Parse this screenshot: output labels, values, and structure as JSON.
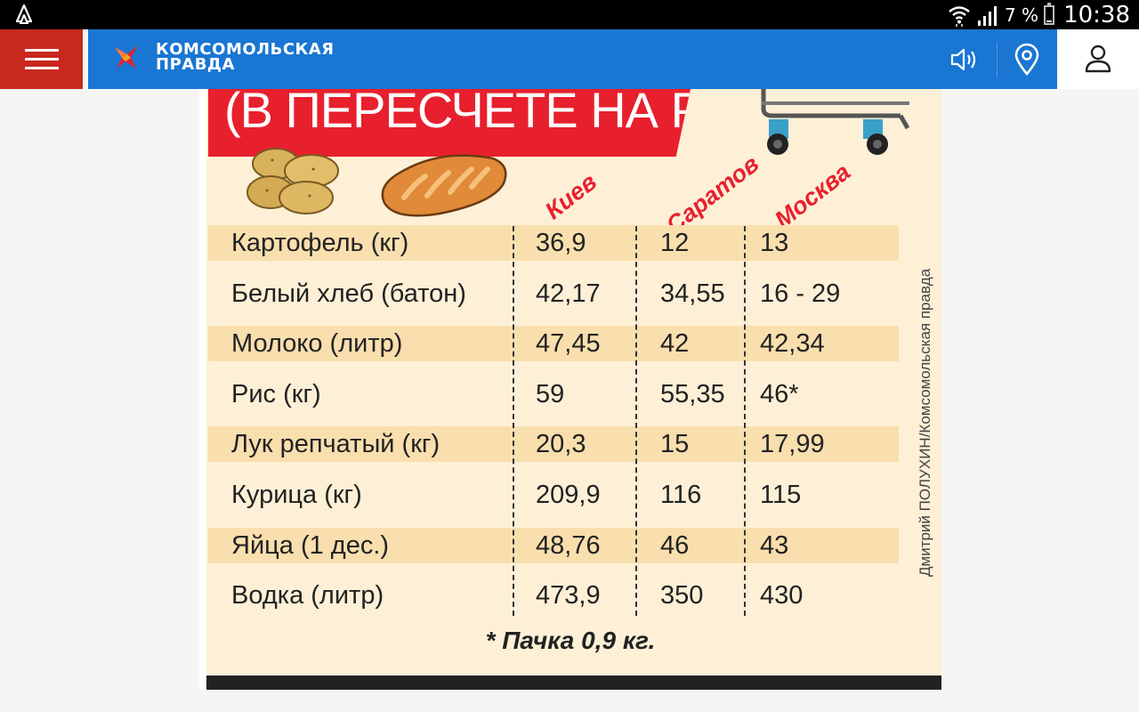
{
  "status_bar": {
    "battery_pct": "7 %",
    "time": "10:38",
    "battery_level": 0.07,
    "icons": [
      "app-notification-icon",
      "wifi-icon",
      "signal-icon",
      "battery-icon"
    ]
  },
  "app_bar": {
    "brand_line1": "КОМСОМОЛЬСКАЯ",
    "brand_line2": "ПРАВДА",
    "colors": {
      "menu": "#c8281e",
      "bar": "#1976d2",
      "user_bg": "#ffffff"
    },
    "icons": [
      "menu-icon",
      "logo-bird-icon",
      "sound-icon",
      "location-icon",
      "user-icon"
    ]
  },
  "infographic": {
    "banner": "(В ПЕРЕСЧЕТЕ НА РУБЛИ)",
    "cities": [
      "Киев",
      "Саратов",
      "Москва"
    ],
    "rows": [
      {
        "label": "Картофель (кг)",
        "values": [
          "36,9",
          "12",
          "13"
        ]
      },
      {
        "label": "Белый хлеб (батон)",
        "values": [
          "42,17",
          "34,55",
          "16 - 29"
        ]
      },
      {
        "label": "Молоко (литр)",
        "values": [
          "47,45",
          "42",
          "42,34"
        ]
      },
      {
        "label": "Рис (кг)",
        "values": [
          "59",
          "55,35",
          "46*"
        ]
      },
      {
        "label": "Лук репчатый (кг)",
        "values": [
          "20,3",
          "15",
          "17,99"
        ]
      },
      {
        "label": "Курица (кг)",
        "values": [
          "209,9",
          "116",
          "115"
        ]
      },
      {
        "label": "Яйца (1 дес.)",
        "values": [
          "48,76",
          "46",
          "43"
        ]
      },
      {
        "label": "Водка (литр)",
        "values": [
          "473,9",
          "350",
          "430"
        ]
      }
    ],
    "footnote": "* Пачка 0,9 кг.",
    "credit": "Дмитрий ПОЛУХИН/Комсомольская правда",
    "colors": {
      "background": "#fdf0d7",
      "stripe": "#f9dfae",
      "accent": "#e8202e"
    }
  }
}
